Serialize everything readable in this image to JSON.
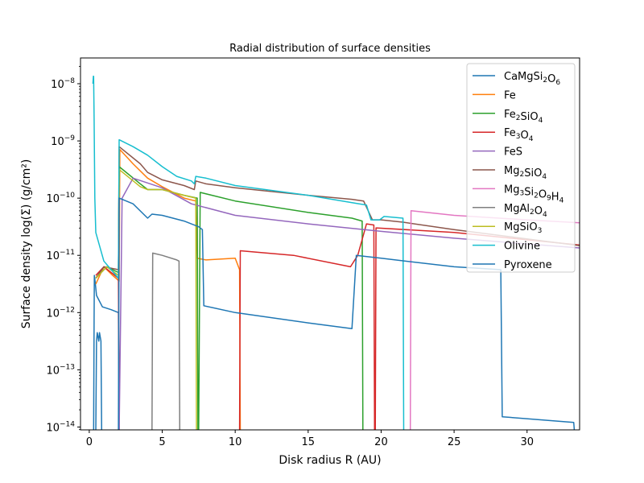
{
  "chart_data": {
    "type": "line",
    "title": "Radial distribution of surface densities",
    "xlabel": "Disk radius R (AU)",
    "ylabel": "Surface density log(Σ) (g/cm²)",
    "xlim": [
      -0.6,
      33.6
    ],
    "ylim_log10": [
      -14.05,
      -7.55
    ],
    "y_scale": "log",
    "x_ticks": [
      0,
      5,
      10,
      15,
      20,
      25,
      30
    ],
    "y_ticks": [
      {
        "exp": -8,
        "label": "10",
        "sup": "−8"
      },
      {
        "exp": -9,
        "label": "10",
        "sup": "−9"
      },
      {
        "exp": -10,
        "label": "10",
        "sup": "−10"
      },
      {
        "exp": -11,
        "label": "10",
        "sup": "−11"
      },
      {
        "exp": -12,
        "label": "10",
        "sup": "−12"
      },
      {
        "exp": -13,
        "label": "10",
        "sup": "−13"
      },
      {
        "exp": -14,
        "label": "10",
        "sup": "−14"
      }
    ],
    "legend_position": "top-right",
    "grid": false,
    "series": [
      {
        "name": "CaMgSi2O6",
        "legend": [
          [
            "CaMgSi",
            ""
          ],
          [
            "2",
            "sub"
          ],
          [
            "O",
            ""
          ],
          [
            "6",
            "sub"
          ]
        ],
        "color": "#1f77b4",
        "points": [
          [
            0.3,
            -14.1
          ],
          [
            0.33,
            -12.1
          ],
          [
            0.35,
            -11.35
          ],
          [
            0.4,
            -11.45
          ],
          [
            0.5,
            -11.7
          ],
          [
            0.9,
            -11.9
          ],
          [
            1.5,
            -11.95
          ],
          [
            2.0,
            -12.0
          ],
          [
            2.05,
            -14.1
          ]
        ]
      },
      {
        "name": "Fe",
        "legend": [
          [
            "Fe",
            ""
          ]
        ],
        "color": "#ff7f0e",
        "points": [
          [
            0.45,
            -11.5
          ],
          [
            1.0,
            -11.2
          ],
          [
            1.6,
            -11.35
          ],
          [
            2.05,
            -11.45
          ],
          [
            2.1,
            -9.15
          ],
          [
            3.0,
            -9.4
          ],
          [
            4.0,
            -9.65
          ],
          [
            5.0,
            -9.8
          ],
          [
            6.5,
            -10.0
          ],
          [
            7.3,
            -10.05
          ],
          [
            7.4,
            -11.05
          ],
          [
            8.0,
            -11.08
          ],
          [
            10.0,
            -11.05
          ],
          [
            10.3,
            -11.25
          ],
          [
            10.35,
            -14.1
          ]
        ]
      },
      {
        "name": "Fe2SiO4",
        "legend": [
          [
            "Fe",
            ""
          ],
          [
            "2",
            "sub"
          ],
          [
            "SiO",
            ""
          ],
          [
            "4",
            "sub"
          ]
        ],
        "color": "#2ca02c",
        "points": [
          [
            0.45,
            -11.4
          ],
          [
            1.2,
            -11.2
          ],
          [
            2.0,
            -11.3
          ],
          [
            2.05,
            -9.45
          ],
          [
            3.5,
            -9.75
          ],
          [
            4.0,
            -9.85
          ],
          [
            5.0,
            -9.85
          ],
          [
            6.5,
            -9.95
          ],
          [
            7.4,
            -10.0
          ],
          [
            7.45,
            -14.1
          ],
          [
            7.5,
            -14.1
          ],
          [
            7.6,
            -9.9
          ],
          [
            10.0,
            -10.05
          ],
          [
            15.0,
            -10.25
          ],
          [
            18.0,
            -10.35
          ],
          [
            18.7,
            -10.4
          ],
          [
            18.75,
            -14.1
          ]
        ]
      },
      {
        "name": "Fe3O4",
        "legend": [
          [
            "Fe",
            ""
          ],
          [
            "3",
            "sub"
          ],
          [
            "O",
            ""
          ],
          [
            "4",
            "sub"
          ]
        ],
        "color": "#d62728",
        "points": [
          [
            0.45,
            -11.35
          ],
          [
            1.0,
            -11.2
          ],
          [
            2.0,
            -11.4
          ],
          [
            2.05,
            -14.1
          ],
          [
            10.3,
            -14.1
          ],
          [
            10.35,
            -10.92
          ],
          [
            14.0,
            -11.0
          ],
          [
            17.9,
            -11.2
          ],
          [
            18.4,
            -11.0
          ],
          [
            19.0,
            -10.45
          ],
          [
            19.5,
            -10.47
          ],
          [
            19.55,
            -14.1
          ],
          [
            19.6,
            -14.1
          ],
          [
            19.65,
            -10.52
          ],
          [
            25.0,
            -10.6
          ],
          [
            33.6,
            -10.82
          ]
        ]
      },
      {
        "name": "FeS",
        "legend": [
          [
            "FeS",
            ""
          ]
        ],
        "color": "#9467bd",
        "points": [
          [
            2.0,
            -14.1
          ],
          [
            2.05,
            -14.1
          ],
          [
            2.25,
            -10.0
          ],
          [
            3.0,
            -9.65
          ],
          [
            5.0,
            -9.82
          ],
          [
            7.0,
            -10.1
          ],
          [
            10.0,
            -10.3
          ],
          [
            15.0,
            -10.45
          ],
          [
            20.0,
            -10.58
          ],
          [
            25.0,
            -10.7
          ],
          [
            30.0,
            -10.8
          ],
          [
            33.6,
            -10.87
          ]
        ]
      },
      {
        "name": "Mg2SiO4",
        "legend": [
          [
            "Mg",
            ""
          ],
          [
            "2",
            "sub"
          ],
          [
            "SiO",
            ""
          ],
          [
            "4",
            "sub"
          ]
        ],
        "color": "#8c564b",
        "points": [
          [
            0.45,
            -11.4
          ],
          [
            1.0,
            -11.2
          ],
          [
            2.0,
            -11.25
          ],
          [
            2.05,
            -9.1
          ],
          [
            3.5,
            -9.4
          ],
          [
            4.0,
            -9.55
          ],
          [
            5.0,
            -9.68
          ],
          [
            6.5,
            -9.78
          ],
          [
            7.2,
            -9.85
          ],
          [
            7.3,
            -9.7
          ],
          [
            8.0,
            -9.75
          ],
          [
            10.0,
            -9.82
          ],
          [
            15.0,
            -9.95
          ],
          [
            18.0,
            -10.02
          ],
          [
            18.8,
            -10.05
          ],
          [
            19.4,
            -10.38
          ],
          [
            20.0,
            -10.38
          ],
          [
            21.5,
            -10.42
          ],
          [
            25.0,
            -10.55
          ],
          [
            33.6,
            -10.83
          ]
        ]
      },
      {
        "name": "Mg3Si2O9H4",
        "legend": [
          [
            "Mg",
            ""
          ],
          [
            "3",
            "sub"
          ],
          [
            "Si",
            ""
          ],
          [
            "2",
            "sub"
          ],
          [
            "O",
            ""
          ],
          [
            "9",
            "sub"
          ],
          [
            "H",
            ""
          ],
          [
            "4",
            "sub"
          ]
        ],
        "color": "#e377c2",
        "points": [
          [
            22.0,
            -14.1
          ],
          [
            22.05,
            -10.22
          ],
          [
            25.0,
            -10.3
          ],
          [
            30.0,
            -10.38
          ],
          [
            33.6,
            -10.43
          ]
        ]
      },
      {
        "name": "MgAl2O4",
        "legend": [
          [
            "MgAl",
            ""
          ],
          [
            "2",
            "sub"
          ],
          [
            "O",
            ""
          ],
          [
            "4",
            "sub"
          ]
        ],
        "color": "#7f7f7f",
        "points": [
          [
            4.3,
            -14.1
          ],
          [
            4.35,
            -10.96
          ],
          [
            5.0,
            -11.0
          ],
          [
            6.0,
            -11.08
          ],
          [
            6.15,
            -11.1
          ],
          [
            6.2,
            -14.1
          ]
        ]
      },
      {
        "name": "MgSiO3",
        "legend": [
          [
            "MgSiO",
            ""
          ],
          [
            "3",
            "sub"
          ]
        ],
        "color": "#bcbd22",
        "points": [
          [
            0.45,
            -11.4
          ],
          [
            1.2,
            -11.2
          ],
          [
            2.0,
            -11.35
          ],
          [
            2.05,
            -9.5
          ],
          [
            3.5,
            -9.8
          ],
          [
            4.0,
            -9.85
          ],
          [
            5.0,
            -9.85
          ],
          [
            6.5,
            -9.95
          ],
          [
            7.3,
            -10.0
          ],
          [
            7.35,
            -14.1
          ]
        ]
      },
      {
        "name": "Olivine",
        "legend": [
          [
            "Olivine",
            ""
          ]
        ],
        "color": "#17becf",
        "points": [
          [
            0.25,
            -8.0
          ],
          [
            0.28,
            -7.87
          ],
          [
            0.3,
            -7.87
          ],
          [
            0.33,
            -8.6
          ],
          [
            0.38,
            -10.0
          ],
          [
            0.45,
            -10.6
          ],
          [
            1.0,
            -11.1
          ],
          [
            1.5,
            -11.25
          ],
          [
            2.0,
            -11.4
          ],
          [
            2.05,
            -8.98
          ],
          [
            3.0,
            -9.1
          ],
          [
            4.0,
            -9.25
          ],
          [
            5.0,
            -9.45
          ],
          [
            6.0,
            -9.62
          ],
          [
            7.0,
            -9.7
          ],
          [
            7.2,
            -9.75
          ],
          [
            7.3,
            -9.62
          ],
          [
            8.0,
            -9.65
          ],
          [
            10.0,
            -9.78
          ],
          [
            15.0,
            -9.95
          ],
          [
            18.5,
            -10.1
          ],
          [
            19.0,
            -10.12
          ],
          [
            19.3,
            -10.38
          ],
          [
            19.9,
            -10.38
          ],
          [
            20.2,
            -10.32
          ],
          [
            21.5,
            -10.35
          ],
          [
            21.55,
            -14.1
          ]
        ]
      },
      {
        "name": "Pyroxene",
        "legend": [
          [
            "Pyroxene",
            ""
          ]
        ],
        "color": "#1f77b4",
        "points": [
          [
            0.45,
            -14.1
          ],
          [
            0.5,
            -12.5
          ],
          [
            0.55,
            -12.35
          ],
          [
            0.65,
            -12.5
          ],
          [
            0.7,
            -12.35
          ],
          [
            0.8,
            -12.5
          ],
          [
            0.85,
            -14.1
          ],
          [
            2.0,
            -14.1
          ],
          [
            2.05,
            -10.0
          ],
          [
            3.0,
            -10.1
          ],
          [
            4.0,
            -10.35
          ],
          [
            4.3,
            -10.28
          ],
          [
            5.0,
            -10.3
          ],
          [
            6.5,
            -10.4
          ],
          [
            7.5,
            -10.5
          ],
          [
            7.75,
            -10.55
          ],
          [
            7.85,
            -11.88
          ],
          [
            10.0,
            -12.0
          ],
          [
            15.0,
            -12.18
          ],
          [
            18.0,
            -12.28
          ],
          [
            18.3,
            -11.0
          ],
          [
            20.0,
            -11.05
          ],
          [
            25.0,
            -11.2
          ],
          [
            28.2,
            -11.25
          ],
          [
            28.3,
            -13.82
          ],
          [
            33.2,
            -13.92
          ],
          [
            33.25,
            -14.1
          ]
        ]
      }
    ]
  }
}
